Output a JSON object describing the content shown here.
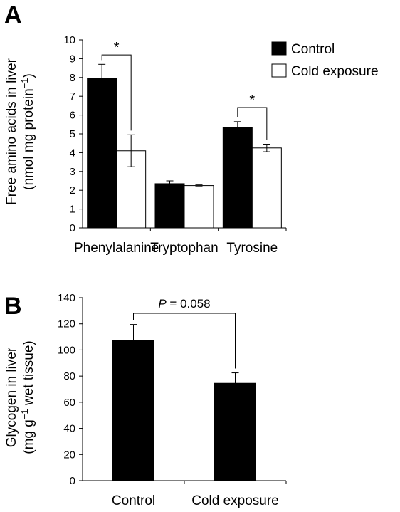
{
  "colors": {
    "control": "#000000",
    "cold": "#ffffff",
    "stroke": "#000000"
  },
  "chart_data": [
    {
      "panel": "A",
      "type": "bar",
      "ylabel_line1": "Free amino acids in liver",
      "ylabel_line2_prefix": "(nmol mg protein",
      "ylabel_line2_sup": "−1",
      "ylabel_line2_suffix": ")",
      "ylim": [
        0,
        10
      ],
      "yticks": [
        "0",
        "1",
        "2",
        "3",
        "4",
        "5",
        "6",
        "7",
        "8",
        "9",
        "10"
      ],
      "categories": [
        "Phenylalanine",
        "Tryptophan",
        "Tyrosine"
      ],
      "series": [
        {
          "name": "Control",
          "values": [
            7.95,
            2.35,
            5.35
          ],
          "errors": [
            0.75,
            0.15,
            0.3
          ]
        },
        {
          "name": "Cold exposure",
          "values": [
            4.1,
            2.25,
            4.25
          ],
          "errors": [
            0.85,
            0.05,
            0.2
          ]
        }
      ],
      "legend": {
        "position": "top-right",
        "items": [
          "Control",
          "Cold exposure"
        ]
      },
      "annotations": [
        {
          "category_index": 0,
          "text": "*",
          "y": 9.2
        },
        {
          "category_index": 2,
          "text": "*",
          "y": 6.4
        }
      ]
    },
    {
      "panel": "B",
      "type": "bar",
      "ylabel_line1": "Glycogen in liver",
      "ylabel_line2_prefix": "(mg g",
      "ylabel_line2_sup": "−1",
      "ylabel_line2_suffix": " wet tissue)",
      "ylim": [
        0,
        140
      ],
      "yticks": [
        "0",
        "20",
        "40",
        "60",
        "80",
        "100",
        "120",
        "140"
      ],
      "categories": [
        "Control",
        "Cold exposure"
      ],
      "values": [
        107.5,
        74.5
      ],
      "errors": [
        12,
        8
      ],
      "annotation": {
        "p_label": "P",
        "p_value": " = 0.058",
        "y": 128
      }
    }
  ]
}
